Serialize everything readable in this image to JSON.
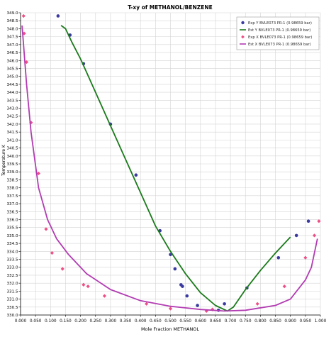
{
  "colors": {
    "exp_y": "#3a3aa0",
    "est_y": "#1a7a1a",
    "exp_x": "#ee4f86",
    "est_x": "#b23cb2",
    "grid": "#d4d4d4",
    "axis": "#000000"
  },
  "chart_data": {
    "type": "scatter",
    "title": "T-xy of METHANOL/BENZENE",
    "xlabel": "Mole Fraction METHANOL",
    "ylabel": "Temperature K",
    "xlim": [
      0.0,
      1.0
    ],
    "ylim": [
      330.0,
      349.0
    ],
    "xticks": [
      "0.000",
      "0.050",
      "0.100",
      "0.150",
      "0.200",
      "0.250",
      "0.300",
      "0.350",
      "0.400",
      "0.450",
      "0.500",
      "0.550",
      "0.600",
      "0.650",
      "0.700",
      "0.750",
      "0.800",
      "0.850",
      "0.900",
      "0.950",
      "1.000"
    ],
    "yticks": [
      "330.0",
      "330.5",
      "331.0",
      "331.5",
      "332.0",
      "332.5",
      "333.0",
      "333.5",
      "334.0",
      "334.5",
      "335.0",
      "335.5",
      "336.0",
      "336.5",
      "337.0",
      "337.5",
      "338.0",
      "338.5",
      "339.0",
      "339.5",
      "340.0",
      "340.5",
      "341.0",
      "341.5",
      "342.0",
      "342.5",
      "343.0",
      "343.5",
      "344.0",
      "344.5",
      "345.0",
      "345.5",
      "346.0",
      "346.5",
      "347.0",
      "347.5",
      "348.0",
      "348.5",
      "349.0"
    ],
    "grid": true,
    "legend_position": "top-right",
    "series": [
      {
        "name": "Exp Y BVLE073 PR-1",
        "pressure": "(0.98659 bar)",
        "kind": "scatter",
        "marker": "circle",
        "color_key": "exp_y",
        "points": [
          [
            0.125,
            348.8
          ],
          [
            0.165,
            347.6
          ],
          [
            0.21,
            345.8
          ],
          [
            0.3,
            342.0
          ],
          [
            0.385,
            338.8
          ],
          [
            0.465,
            335.3
          ],
          [
            0.5,
            333.8
          ],
          [
            0.515,
            332.9
          ],
          [
            0.535,
            331.9
          ],
          [
            0.54,
            331.8
          ],
          [
            0.555,
            331.2
          ],
          [
            0.59,
            330.6
          ],
          [
            0.66,
            330.3
          ],
          [
            0.68,
            330.7
          ],
          [
            0.755,
            331.7
          ],
          [
            0.86,
            333.6
          ],
          [
            0.92,
            335.0
          ],
          [
            0.96,
            335.9
          ]
        ]
      },
      {
        "name": "Est Y BVLE073 PR-1",
        "pressure": "(0.98659 bar)",
        "kind": "line",
        "color_key": "est_y",
        "points": [
          [
            0.135,
            348.2
          ],
          [
            0.15,
            348.0
          ],
          [
            0.17,
            347.2
          ],
          [
            0.2,
            346.1
          ],
          [
            0.25,
            344.0
          ],
          [
            0.3,
            341.9
          ],
          [
            0.35,
            339.8
          ],
          [
            0.4,
            337.7
          ],
          [
            0.45,
            335.6
          ],
          [
            0.5,
            334.0
          ],
          [
            0.55,
            332.6
          ],
          [
            0.6,
            331.4
          ],
          [
            0.65,
            330.6
          ],
          [
            0.69,
            330.25
          ],
          [
            0.71,
            330.5
          ],
          [
            0.75,
            331.6
          ],
          [
            0.8,
            332.8
          ],
          [
            0.85,
            333.9
          ],
          [
            0.9,
            334.9
          ]
        ]
      },
      {
        "name": "Exp X BVLE073 PR-1",
        "pressure": "(0.98659 bar)",
        "kind": "scatter",
        "marker": "diamond",
        "color_key": "exp_x",
        "points": [
          [
            0.01,
            348.8
          ],
          [
            0.012,
            347.7
          ],
          [
            0.02,
            345.9
          ],
          [
            0.035,
            342.1
          ],
          [
            0.06,
            338.9
          ],
          [
            0.085,
            335.4
          ],
          [
            0.105,
            333.9
          ],
          [
            0.14,
            332.9
          ],
          [
            0.21,
            331.9
          ],
          [
            0.225,
            331.8
          ],
          [
            0.28,
            331.2
          ],
          [
            0.42,
            330.7
          ],
          [
            0.5,
            330.4
          ],
          [
            0.62,
            330.25
          ],
          [
            0.64,
            330.35
          ],
          [
            0.79,
            330.7
          ],
          [
            0.88,
            331.8
          ],
          [
            0.95,
            333.6
          ],
          [
            0.98,
            335.0
          ],
          [
            0.995,
            335.9
          ]
        ]
      },
      {
        "name": "Est X BVLE073 PR-1",
        "pressure": "(0.98659 bar)",
        "kind": "line",
        "color_key": "est_x",
        "points": [
          [
            0.005,
            348.2
          ],
          [
            0.01,
            347.0
          ],
          [
            0.02,
            344.5
          ],
          [
            0.035,
            341.5
          ],
          [
            0.06,
            338.0
          ],
          [
            0.09,
            336.0
          ],
          [
            0.12,
            334.8
          ],
          [
            0.16,
            333.8
          ],
          [
            0.22,
            332.6
          ],
          [
            0.3,
            331.6
          ],
          [
            0.4,
            330.9
          ],
          [
            0.5,
            330.55
          ],
          [
            0.6,
            330.35
          ],
          [
            0.68,
            330.25
          ],
          [
            0.75,
            330.3
          ],
          [
            0.85,
            330.6
          ],
          [
            0.9,
            331.0
          ],
          [
            0.95,
            332.2
          ],
          [
            0.97,
            333.0
          ],
          [
            0.99,
            334.8
          ]
        ]
      }
    ]
  }
}
